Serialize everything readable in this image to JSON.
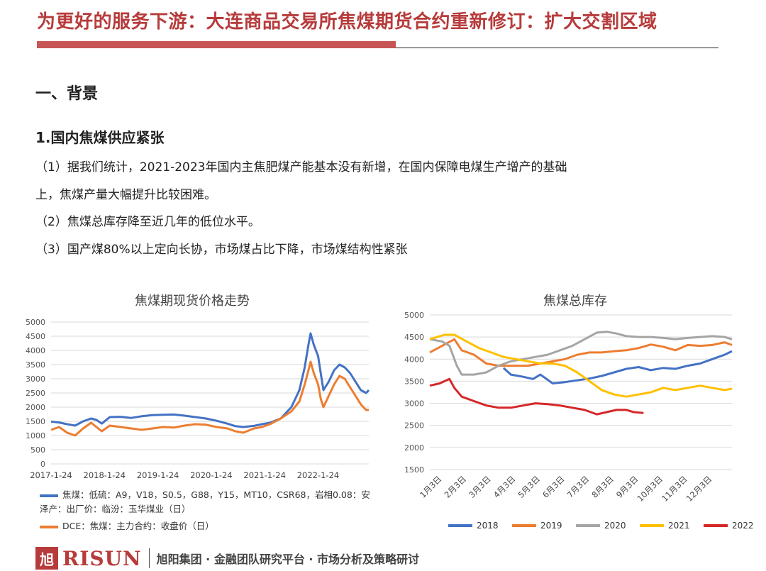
{
  "header": {
    "title": "为更好的服务下游：大连商品交易所焦煤期货合约重新修订：扩大交割区域",
    "section": "一、背景",
    "subsection": "1.国内焦煤供应紧张",
    "paragraphs": [
      "（1）据我们统计，2021-2023年国内主焦肥煤产能基本没有新增，在国内保障电煤生产增产的基础",
      "上，焦煤产量大幅提升比较困难。",
      "（2）焦煤总库存降至近几年的低位水平。",
      "（3）国产煤80%以上定向长协，市场煤占比下降，市场煤结构性紧张"
    ]
  },
  "footer": {
    "logo_char": "旭",
    "logo_text": "RISUN",
    "text": "旭阳集团 · 金融团队研究平台 · 市场分析及策略研讨"
  },
  "colors": {
    "blue": "#4472c4",
    "orange": "#ed7d31",
    "gray": "#a5a5a5",
    "yellow": "#ffc000",
    "red": "#d62728",
    "brand": "#b73b3b"
  },
  "chart_data": [
    {
      "type": "line",
      "title": "焦煤期现货价格走势",
      "ylim": [
        0,
        5000
      ],
      "yticks": [
        0,
        500,
        1000,
        1500,
        2000,
        2500,
        3000,
        3500,
        4000,
        4500,
        5000
      ],
      "xticks": [
        "2017-1-24",
        "2018-1-24",
        "2019-1-24",
        "2020-1-24",
        "2021-1-24",
        "2022-1-24"
      ],
      "xrange": [
        2017.0,
        2022.95
      ],
      "grid": true,
      "legend_position": "bottom",
      "series": [
        {
          "name": "焦煤：低硫：A9，V18，S0.5，G88，Y15，MT10，CSR68，岩相0.08：安泽产：出厂价：临汾：玉华煤业（日）",
          "color": "#4472c4",
          "points": [
            [
              2017.0,
              1490
            ],
            [
              2017.15,
              1460
            ],
            [
              2017.3,
              1400
            ],
            [
              2017.45,
              1350
            ],
            [
              2017.6,
              1500
            ],
            [
              2017.75,
              1600
            ],
            [
              2017.85,
              1550
            ],
            [
              2017.95,
              1420
            ],
            [
              2018.1,
              1650
            ],
            [
              2018.3,
              1660
            ],
            [
              2018.5,
              1620
            ],
            [
              2018.7,
              1680
            ],
            [
              2018.9,
              1720
            ],
            [
              2019.1,
              1730
            ],
            [
              2019.3,
              1740
            ],
            [
              2019.5,
              1700
            ],
            [
              2019.7,
              1650
            ],
            [
              2019.9,
              1600
            ],
            [
              2020.1,
              1520
            ],
            [
              2020.3,
              1420
            ],
            [
              2020.45,
              1330
            ],
            [
              2020.6,
              1300
            ],
            [
              2020.8,
              1340
            ],
            [
              2020.95,
              1400
            ],
            [
              2021.1,
              1450
            ],
            [
              2021.3,
              1600
            ],
            [
              2021.5,
              2000
            ],
            [
              2021.65,
              2600
            ],
            [
              2021.75,
              3400
            ],
            [
              2021.82,
              4200
            ],
            [
              2021.86,
              4600
            ],
            [
              2021.92,
              4200
            ],
            [
              2022.0,
              3800
            ],
            [
              2022.05,
              3200
            ],
            [
              2022.1,
              2600
            ],
            [
              2022.2,
              2900
            ],
            [
              2022.3,
              3300
            ],
            [
              2022.4,
              3500
            ],
            [
              2022.5,
              3400
            ],
            [
              2022.6,
              3200
            ],
            [
              2022.7,
              2900
            ],
            [
              2022.8,
              2600
            ],
            [
              2022.9,
              2500
            ],
            [
              2022.95,
              2600
            ]
          ]
        },
        {
          "name": "DCE：焦煤：主力合约：收盘价（日）",
          "color": "#ed7d31",
          "points": [
            [
              2017.0,
              1200
            ],
            [
              2017.15,
              1300
            ],
            [
              2017.3,
              1100
            ],
            [
              2017.45,
              1000
            ],
            [
              2017.6,
              1250
            ],
            [
              2017.75,
              1450
            ],
            [
              2017.85,
              1300
            ],
            [
              2017.95,
              1150
            ],
            [
              2018.1,
              1350
            ],
            [
              2018.3,
              1300
            ],
            [
              2018.5,
              1250
            ],
            [
              2018.7,
              1200
            ],
            [
              2018.9,
              1250
            ],
            [
              2019.1,
              1300
            ],
            [
              2019.3,
              1280
            ],
            [
              2019.5,
              1350
            ],
            [
              2019.7,
              1400
            ],
            [
              2019.9,
              1380
            ],
            [
              2020.1,
              1300
            ],
            [
              2020.3,
              1250
            ],
            [
              2020.45,
              1150
            ],
            [
              2020.6,
              1100
            ],
            [
              2020.8,
              1250
            ],
            [
              2020.95,
              1300
            ],
            [
              2021.1,
              1400
            ],
            [
              2021.3,
              1600
            ],
            [
              2021.5,
              1850
            ],
            [
              2021.65,
              2200
            ],
            [
              2021.75,
              2800
            ],
            [
              2021.82,
              3300
            ],
            [
              2021.86,
              3600
            ],
            [
              2021.92,
              3200
            ],
            [
              2022.0,
              2800
            ],
            [
              2022.05,
              2300
            ],
            [
              2022.1,
              2000
            ],
            [
              2022.2,
              2400
            ],
            [
              2022.3,
              2800
            ],
            [
              2022.4,
              3100
            ],
            [
              2022.5,
              3000
            ],
            [
              2022.6,
              2700
            ],
            [
              2022.7,
              2400
            ],
            [
              2022.8,
              2100
            ],
            [
              2022.9,
              1900
            ],
            [
              2022.95,
              1900
            ]
          ]
        }
      ]
    },
    {
      "type": "line",
      "title": "焦煤总库存",
      "ylim": [
        1500,
        5000
      ],
      "yticks": [
        1500,
        2000,
        2500,
        3000,
        3500,
        4000,
        4500,
        5000
      ],
      "xticks": [
        "1月3日",
        "2月3日",
        "3月3日",
        "4月3日",
        "5月3日",
        "6月3日",
        "7月3日",
        "8月3日",
        "9月3日",
        "10月3日",
        "11月3日",
        "12月3日"
      ],
      "xrange": [
        0,
        12.3
      ],
      "grid": true,
      "legend_position": "bottom",
      "series": [
        {
          "name": "2018",
          "color": "#4472c4",
          "points": [
            [
              3.0,
              3800
            ],
            [
              3.3,
              3650
            ],
            [
              3.8,
              3600
            ],
            [
              4.2,
              3550
            ],
            [
              4.5,
              3650
            ],
            [
              5.0,
              3450
            ],
            [
              5.5,
              3480
            ],
            [
              6.0,
              3520
            ],
            [
              6.5,
              3560
            ],
            [
              7.0,
              3620
            ],
            [
              7.5,
              3700
            ],
            [
              8.0,
              3780
            ],
            [
              8.5,
              3820
            ],
            [
              9.0,
              3750
            ],
            [
              9.5,
              3800
            ],
            [
              10.0,
              3780
            ],
            [
              10.5,
              3850
            ],
            [
              11.0,
              3900
            ],
            [
              11.5,
              4000
            ],
            [
              12.0,
              4100
            ],
            [
              12.3,
              4180
            ]
          ]
        },
        {
          "name": "2019",
          "color": "#ed7d31",
          "points": [
            [
              0.0,
              4150
            ],
            [
              0.5,
              4300
            ],
            [
              1.0,
              4450
            ],
            [
              1.3,
              4200
            ],
            [
              1.8,
              4100
            ],
            [
              2.3,
              3900
            ],
            [
              2.8,
              3850
            ],
            [
              3.5,
              3850
            ],
            [
              4.0,
              3850
            ],
            [
              4.5,
              3900
            ],
            [
              5.0,
              3950
            ],
            [
              5.5,
              4000
            ],
            [
              6.0,
              4100
            ],
            [
              6.5,
              4150
            ],
            [
              7.0,
              4150
            ],
            [
              7.5,
              4180
            ],
            [
              8.0,
              4200
            ],
            [
              8.5,
              4250
            ],
            [
              9.0,
              4330
            ],
            [
              9.5,
              4280
            ],
            [
              10.0,
              4200
            ],
            [
              10.5,
              4320
            ],
            [
              11.0,
              4300
            ],
            [
              11.5,
              4320
            ],
            [
              12.0,
              4380
            ],
            [
              12.3,
              4320
            ]
          ]
        },
        {
          "name": "2020",
          "color": "#a5a5a5",
          "points": [
            [
              0.0,
              4450
            ],
            [
              0.5,
              4400
            ],
            [
              0.8,
              4300
            ],
            [
              1.1,
              3850
            ],
            [
              1.3,
              3650
            ],
            [
              1.8,
              3650
            ],
            [
              2.3,
              3700
            ],
            [
              2.8,
              3850
            ],
            [
              3.3,
              3950
            ],
            [
              3.8,
              4000
            ],
            [
              4.3,
              4050
            ],
            [
              4.8,
              4100
            ],
            [
              5.3,
              4200
            ],
            [
              5.8,
              4300
            ],
            [
              6.3,
              4450
            ],
            [
              6.8,
              4600
            ],
            [
              7.2,
              4620
            ],
            [
              7.6,
              4580
            ],
            [
              8.0,
              4520
            ],
            [
              8.5,
              4500
            ],
            [
              9.0,
              4500
            ],
            [
              9.5,
              4480
            ],
            [
              10.0,
              4450
            ],
            [
              10.5,
              4480
            ],
            [
              11.0,
              4500
            ],
            [
              11.5,
              4520
            ],
            [
              12.0,
              4500
            ],
            [
              12.3,
              4450
            ]
          ]
        },
        {
          "name": "2021",
          "color": "#ffc000",
          "points": [
            [
              0.0,
              4450
            ],
            [
              0.3,
              4500
            ],
            [
              0.6,
              4550
            ],
            [
              1.0,
              4550
            ],
            [
              1.5,
              4400
            ],
            [
              2.0,
              4250
            ],
            [
              2.5,
              4150
            ],
            [
              3.0,
              4050
            ],
            [
              3.5,
              4000
            ],
            [
              4.0,
              3950
            ],
            [
              4.5,
              3900
            ],
            [
              5.0,
              3900
            ],
            [
              5.5,
              3850
            ],
            [
              6.0,
              3700
            ],
            [
              6.5,
              3500
            ],
            [
              7.0,
              3300
            ],
            [
              7.5,
              3200
            ],
            [
              8.0,
              3150
            ],
            [
              8.5,
              3200
            ],
            [
              9.0,
              3250
            ],
            [
              9.5,
              3350
            ],
            [
              10.0,
              3300
            ],
            [
              10.5,
              3350
            ],
            [
              11.0,
              3400
            ],
            [
              11.5,
              3350
            ],
            [
              12.0,
              3300
            ],
            [
              12.3,
              3330
            ]
          ]
        },
        {
          "name": "2022",
          "color": "#d62728",
          "points": [
            [
              0.0,
              3400
            ],
            [
              0.4,
              3450
            ],
            [
              0.8,
              3550
            ],
            [
              1.0,
              3350
            ],
            [
              1.3,
              3150
            ],
            [
              1.8,
              3050
            ],
            [
              2.3,
              2950
            ],
            [
              2.8,
              2900
            ],
            [
              3.3,
              2900
            ],
            [
              3.8,
              2950
            ],
            [
              4.3,
              3000
            ],
            [
              4.8,
              2980
            ],
            [
              5.3,
              2950
            ],
            [
              5.8,
              2900
            ],
            [
              6.3,
              2850
            ],
            [
              6.8,
              2750
            ],
            [
              7.2,
              2800
            ],
            [
              7.6,
              2850
            ],
            [
              8.0,
              2850
            ],
            [
              8.3,
              2800
            ],
            [
              8.7,
              2780
            ]
          ]
        }
      ]
    }
  ]
}
